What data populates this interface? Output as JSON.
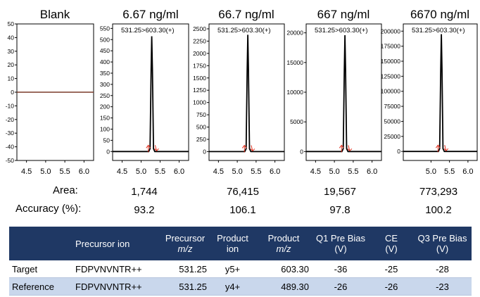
{
  "chart_data": [
    {
      "type": "line",
      "title": "Blank",
      "annotation": "",
      "ylim": [
        -50,
        50
      ],
      "yticks": [
        50,
        40,
        30,
        20,
        10,
        0,
        -10,
        -20,
        -30,
        -40,
        -50
      ],
      "xlim": [
        4.25,
        6.25
      ],
      "xticks": [
        "4.5",
        "5.0",
        "5.5",
        "6.0"
      ],
      "peak": null,
      "series": [
        {
          "x": [
            4.25,
            6.25
          ],
          "y": [
            0,
            0
          ]
        }
      ]
    },
    {
      "type": "line",
      "title": "6.67 ng/ml",
      "annotation": "531.25>603.30(+)",
      "ylim": [
        -40,
        570
      ],
      "yticks": [
        550,
        500,
        450,
        400,
        350,
        300,
        250,
        200,
        150,
        100,
        50,
        0
      ],
      "xlim": [
        4.25,
        6.25
      ],
      "xticks": [
        "4.5",
        "5.0",
        "5.5",
        "6.0"
      ],
      "peak": {
        "rt": 5.28,
        "height": 515
      },
      "series": []
    },
    {
      "type": "line",
      "title": "66.7 ng/ml",
      "annotation": "531.25>603.30(+)",
      "ylim": [
        -180,
        2600
      ],
      "yticks": [
        2500,
        2250,
        2000,
        1750,
        1500,
        1250,
        1000,
        750,
        500,
        250,
        0
      ],
      "xlim": [
        4.25,
        6.25
      ],
      "xticks": [
        "4.5",
        "5.0",
        "5.5",
        "6.0"
      ],
      "peak": {
        "rt": 5.28,
        "height": 2380
      },
      "series": []
    },
    {
      "type": "line",
      "title": "667 ng/ml",
      "annotation": "531.25>603.30(+)",
      "ylim": [
        -1500,
        21500
      ],
      "yticks": [
        20000,
        15000,
        10000,
        5000,
        0
      ],
      "xlim": [
        4.25,
        6.25
      ],
      "xticks": [
        "4.5",
        "5.0",
        "5.5",
        "6.0"
      ],
      "peak": {
        "rt": 5.28,
        "height": 19600
      },
      "series": []
    },
    {
      "type": "line",
      "title": "6670 ng/ml",
      "annotation": "531.25>603.30(+)",
      "ylim": [
        -15000,
        212000
      ],
      "yticks": [
        200000,
        175000,
        150000,
        125000,
        100000,
        75000,
        50000,
        25000,
        0
      ],
      "xlim": [
        4.25,
        6.25
      ],
      "xticks": [
        "5.0",
        "5.5",
        "6.0"
      ],
      "peak": {
        "rt": 5.28,
        "height": 195000
      },
      "series": []
    }
  ],
  "metrics": {
    "area_label": "Area:",
    "accuracy_label": "Accuracy (%):",
    "area": [
      "1,744",
      "76,415",
      "19,567",
      "773,293"
    ],
    "accuracy": [
      "93.2",
      "106.1",
      "97.8",
      "100.2"
    ]
  },
  "table": {
    "headers": [
      {
        "line1": "",
        "line2": ""
      },
      {
        "line1": "Precursor ion",
        "line2": ""
      },
      {
        "line1": "Precursor",
        "line2": "m/z"
      },
      {
        "line1": "Product",
        "line2": "ion"
      },
      {
        "line1": "Product",
        "line2": "m/z"
      },
      {
        "line1": "Q1 Pre Bias",
        "line2": "(V)"
      },
      {
        "line1": "CE",
        "line2": "(V)"
      },
      {
        "line1": "Q3 Pre Bias",
        "line2": "(V)"
      }
    ],
    "rows": [
      [
        "Target",
        "FDPVNVNTR++",
        "531.25",
        "y5+",
        "603.30",
        "-36",
        "-25",
        "-28"
      ],
      [
        "Reference",
        "FDPVNVNTR++",
        "531.25",
        "y4+",
        "489.30",
        "-26",
        "-26",
        "-23"
      ]
    ],
    "colors": {
      "header_bg": "#1f3864",
      "row_alt": "#c9d7ec"
    }
  },
  "colors": {
    "trace": "#000000",
    "marker": "#e0301e"
  }
}
